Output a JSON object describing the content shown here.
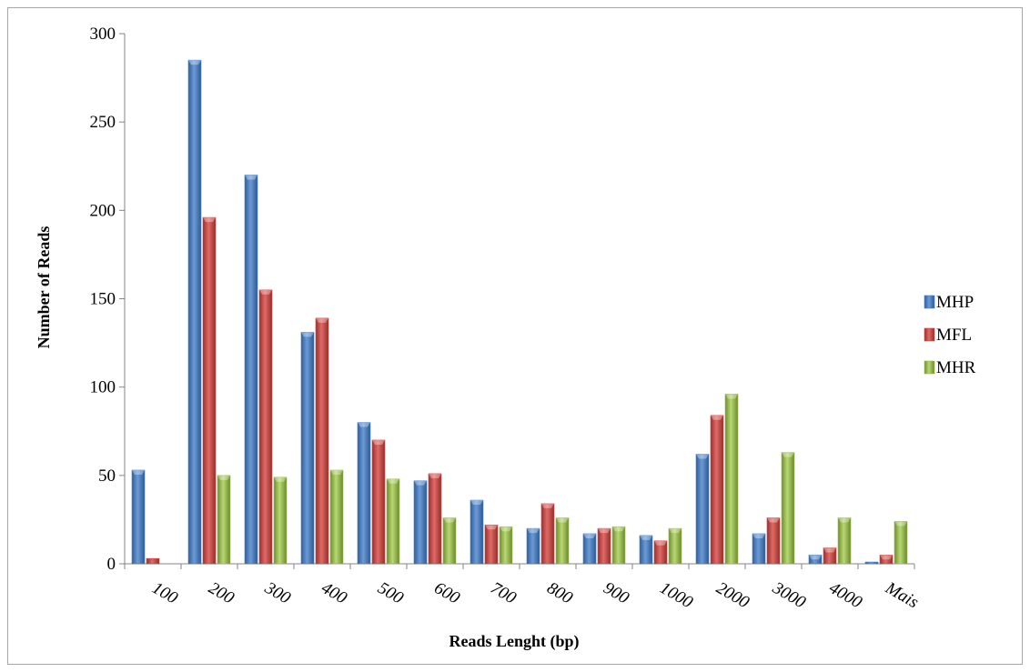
{
  "chart_data": {
    "type": "bar",
    "title": "",
    "xlabel": "Reads Lenght (bp)",
    "ylabel": "Number of Reads",
    "ylim": [
      0,
      300
    ],
    "yticks": [
      0,
      50,
      100,
      150,
      200,
      250,
      300
    ],
    "grid": false,
    "legend_position": "right",
    "categories": [
      "100",
      "200",
      "300",
      "400",
      "500",
      "600",
      "700",
      "800",
      "900",
      "1000",
      "2000",
      "3000",
      "4000",
      "Mais"
    ],
    "series": [
      {
        "name": "MHP",
        "color": "#4a7ebb",
        "values": [
          53,
          285,
          220,
          131,
          80,
          47,
          36,
          20,
          17,
          16,
          62,
          17,
          5,
          1
        ]
      },
      {
        "name": "MFL",
        "color": "#be4b48",
        "values": [
          3,
          196,
          155,
          139,
          70,
          51,
          22,
          34,
          20,
          13,
          84,
          26,
          9,
          5
        ]
      },
      {
        "name": "MHR",
        "color": "#98b954",
        "values": [
          0,
          50,
          49,
          53,
          48,
          26,
          21,
          26,
          21,
          20,
          96,
          63,
          26,
          24
        ]
      }
    ]
  }
}
